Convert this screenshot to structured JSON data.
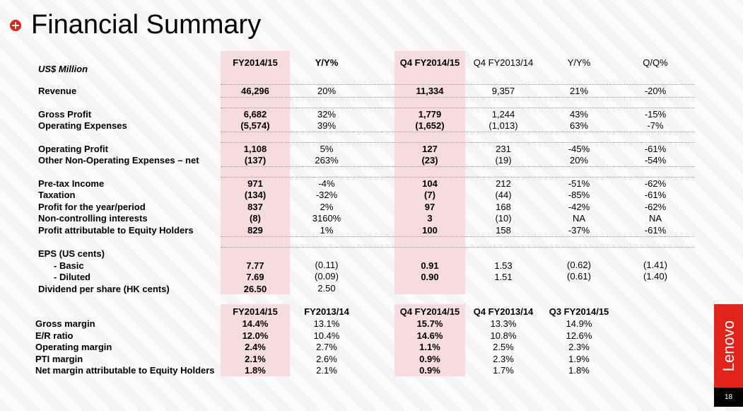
{
  "title": "Financial Summary",
  "unit_label": "US$ Million",
  "headers": [
    "FY2014/15",
    "Y/Y%",
    "Q4 FY2014/15",
    "Q4 FY2013/14",
    "Y/Y%",
    "Q/Q%"
  ],
  "rows": [
    {
      "label": "Revenue",
      "values": [
        "46,296",
        "20%",
        "11,334",
        "9,357",
        "21%",
        "-20%"
      ]
    },
    {
      "label": "Gross Profit",
      "values": [
        "6,682",
        "32%",
        "1,779",
        "1,244",
        "43%",
        "-15%"
      ]
    },
    {
      "label": "Operating Expenses",
      "values": [
        "(5,574)",
        "39%",
        "(1,652)",
        "(1,013)",
        "63%",
        "-7%"
      ]
    },
    {
      "label": "Operating Profit",
      "values": [
        "1,108",
        "5%",
        "127",
        "231",
        "-45%",
        "-61%"
      ]
    },
    {
      "label": "Other Non-Operating Expenses – net",
      "values": [
        "(137)",
        "263%",
        "(23)",
        "(19)",
        "20%",
        "-54%"
      ]
    },
    {
      "label": "Pre-tax Income",
      "values": [
        "971",
        "-4%",
        "104",
        "212",
        "-51%",
        "-62%"
      ]
    },
    {
      "label": "Taxation",
      "values": [
        "(134)",
        "-32%",
        "(7)",
        "(44)",
        "-85%",
        "-61%"
      ]
    },
    {
      "label": "Profit for the year/period",
      "values": [
        "837",
        "2%",
        "97",
        "168",
        "-42%",
        "-62%"
      ]
    },
    {
      "label": "Non-controlling interests",
      "values": [
        "(8)",
        "3160%",
        "3",
        "(10)",
        "NA",
        "NA"
      ]
    },
    {
      "label": "Profit attributable to Equity Holders",
      "values": [
        "829",
        "1%",
        "100",
        "158",
        "-37%",
        "-61%"
      ]
    }
  ],
  "eps": {
    "heading": "EPS (US cents)",
    "basic": {
      "label": "- Basic",
      "values": [
        "7.77",
        "(0.11)",
        "0.91",
        "1.53",
        "(0.62)",
        "(1.41)"
      ]
    },
    "diluted": {
      "label": "- Diluted",
      "values": [
        "7.69",
        "(0.09)",
        "0.90",
        "1.51",
        "(0.61)",
        "(1.40)"
      ]
    },
    "dividend": {
      "label": "Dividend per share (HK cents)",
      "values": [
        "26.50",
        "2.50"
      ]
    }
  },
  "margins": {
    "headers": [
      "FY2014/15",
      "FY2013/14",
      "Q4 FY2014/15",
      "Q4 FY2013/14",
      "Q3 FY2014/15"
    ],
    "rows": [
      {
        "label": "Gross margin",
        "values": [
          "14.4%",
          "13.1%",
          "15.7%",
          "13.3%",
          "14.9%"
        ]
      },
      {
        "label": "E/R ratio",
        "values": [
          "12.0%",
          "10.4%",
          "14.6%",
          "10.8%",
          "12.6%"
        ]
      },
      {
        "label": "Operating margin",
        "values": [
          "2.4%",
          "2.7%",
          "1.1%",
          "2.5%",
          "2.3%"
        ]
      },
      {
        "label": "PTI margin",
        "values": [
          "2.1%",
          "2.6%",
          "0.9%",
          "2.3%",
          "1.9%"
        ]
      },
      {
        "label": "Net margin attributable to Equity Holders",
        "values": [
          "1.8%",
          "2.1%",
          "0.9%",
          "1.7%",
          "1.8%"
        ]
      }
    ]
  },
  "brand": "Lenovo",
  "page_number": "18",
  "colors": {
    "accent": "#e2231a",
    "band": "#f6dcdc"
  }
}
